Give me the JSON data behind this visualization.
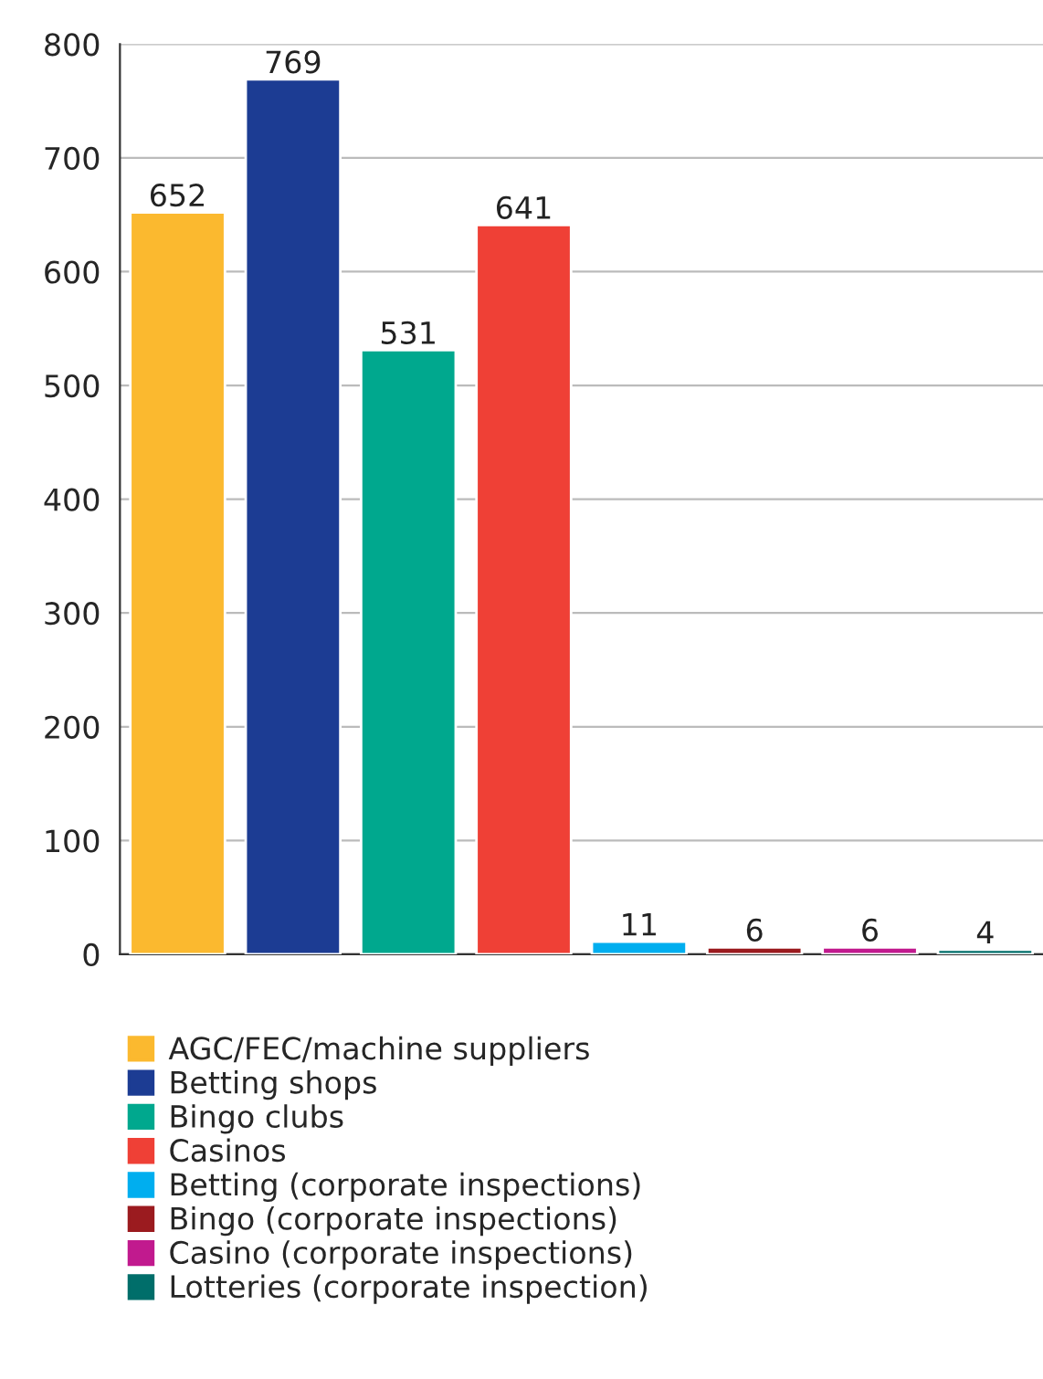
{
  "chart_data": {
    "type": "bar",
    "categories": [
      null,
      null,
      null,
      null,
      null,
      null,
      null,
      null
    ],
    "series": [
      {
        "name": "AGC/FEC/machine suppliers",
        "color": "#fbb92f",
        "values": [
          652,
          null,
          null,
          null,
          null,
          null,
          null,
          null
        ]
      },
      {
        "name": "Betting shops",
        "color": "#1c3c93",
        "values": [
          null,
          769,
          null,
          null,
          null,
          null,
          null,
          null
        ]
      },
      {
        "name": "Bingo clubs",
        "color": "#00a88e",
        "values": [
          null,
          null,
          531,
          null,
          null,
          null,
          null,
          null
        ]
      },
      {
        "name": "Casinos",
        "color": "#ef4036",
        "values": [
          null,
          null,
          null,
          641,
          null,
          null,
          null,
          null
        ]
      },
      {
        "name": "Betting (corporate inspections)",
        "color": "#00aeef",
        "values": [
          null,
          null,
          null,
          null,
          11,
          null,
          null,
          null
        ]
      },
      {
        "name": "Bingo (corporate inspections)",
        "color": "#9b1b1f",
        "values": [
          null,
          null,
          null,
          null,
          null,
          6,
          null,
          null
        ]
      },
      {
        "name": "Casino (corporate inspections)",
        "color": "#c11a8e",
        "values": [
          null,
          null,
          null,
          null,
          null,
          null,
          6,
          null
        ]
      },
      {
        "name": "Lotteries (corporate inspection)",
        "color": "#006e6a",
        "values": [
          null,
          null,
          null,
          null,
          null,
          null,
          null,
          4
        ]
      }
    ],
    "ylim": [
      0,
      800
    ],
    "yticks": [
      0,
      100,
      200,
      300,
      400,
      500,
      600,
      700,
      800
    ],
    "data_labels": true,
    "grid": "y",
    "legend": "bottom",
    "tick_labels": "y"
  }
}
